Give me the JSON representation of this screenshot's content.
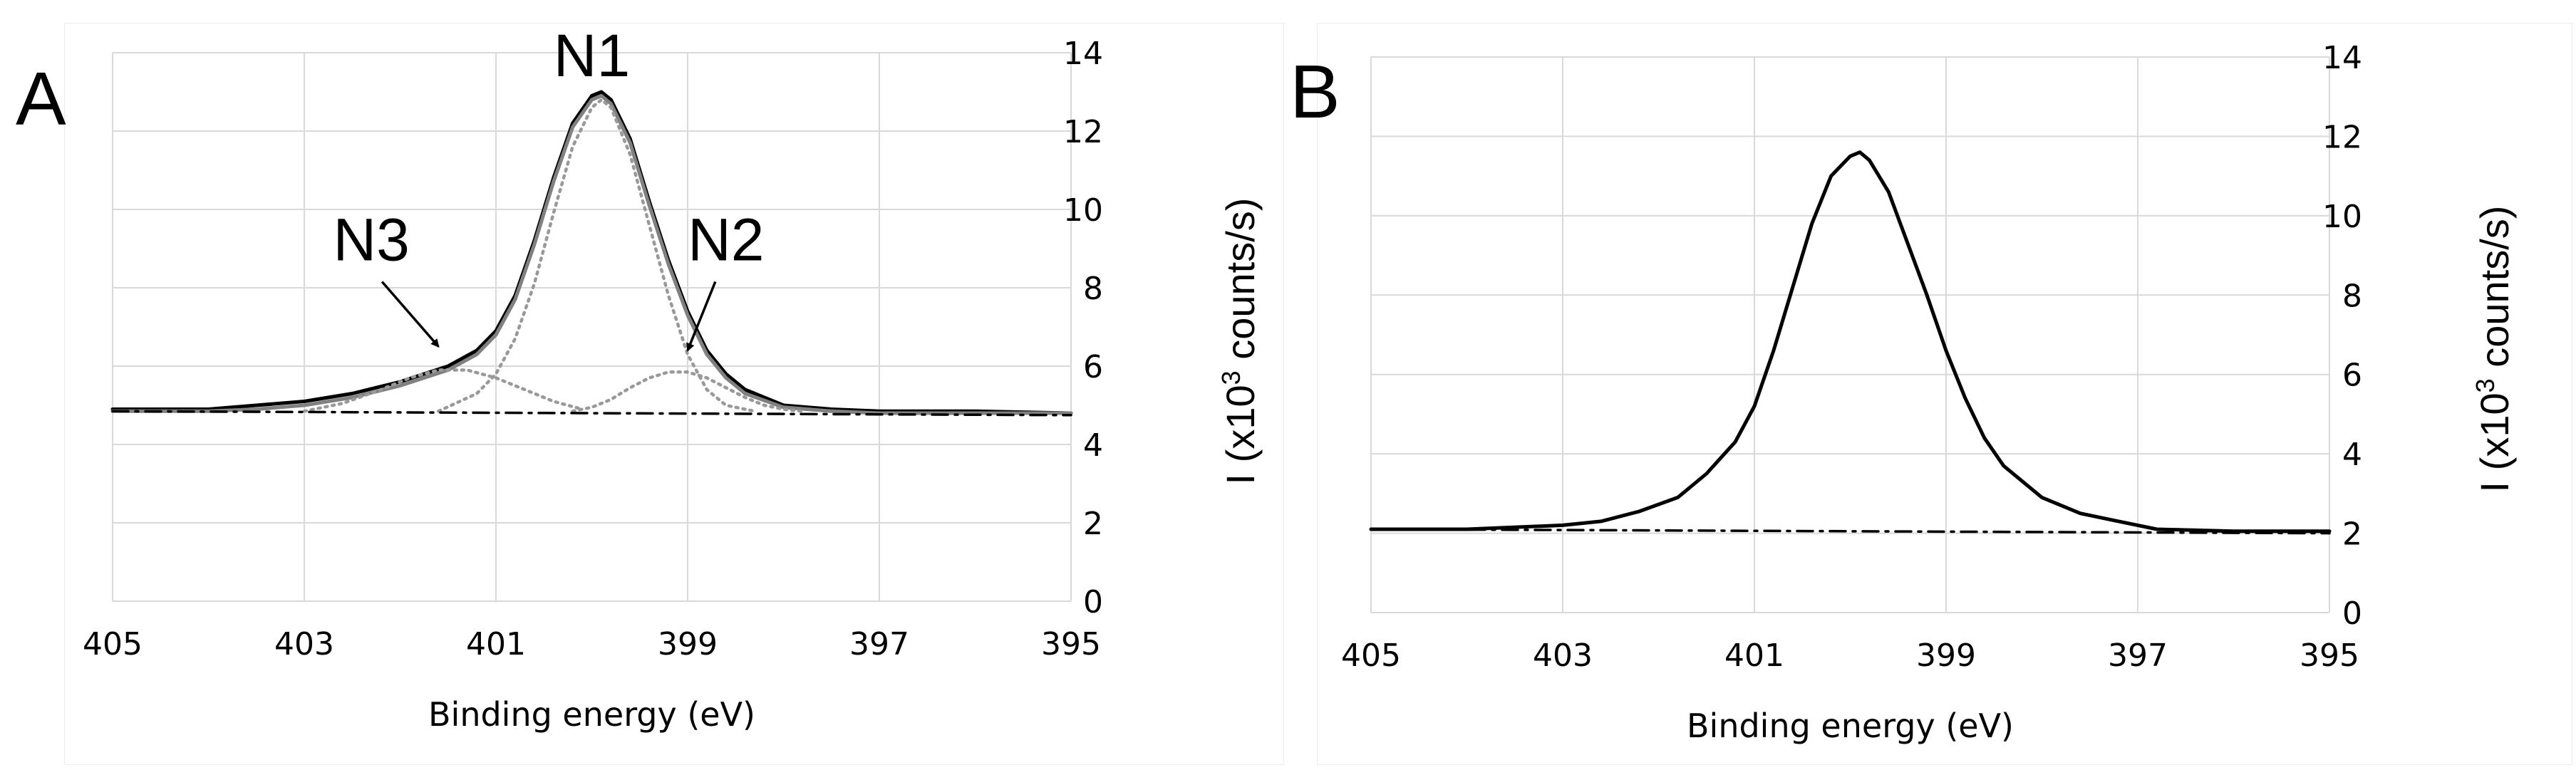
{
  "chart_data": [
    {
      "type": "line",
      "panel_label": "A",
      "xlabel": "Binding energy (eV)",
      "ylabel": "I (x10",
      "ylabel_sup": "3",
      "ylabel_tail": " counts/s)",
      "xlim": [
        405,
        395
      ],
      "ylim": [
        0,
        14
      ],
      "xticks": [
        "405",
        "403",
        "401",
        "399",
        "397",
        "395"
      ],
      "yticks": [
        "0",
        "2",
        "4",
        "6",
        "8",
        "10",
        "12",
        "14"
      ],
      "grid": true,
      "annotations": [
        {
          "text": "N1",
          "x": 400.0,
          "y": 13.4
        },
        {
          "text": "N2",
          "x": 398.6,
          "y": 8.7,
          "arrow_to": [
            399.0,
            6.4
          ]
        },
        {
          "text": "N3",
          "x": 402.3,
          "y": 8.7,
          "arrow_to": [
            401.6,
            6.5
          ]
        }
      ],
      "series": [
        {
          "role": "measured",
          "color": "#000000",
          "style": "solid",
          "x": [
            405,
            404,
            403.5,
            403,
            402.5,
            402,
            401.5,
            401.2,
            401,
            400.8,
            400.6,
            400.4,
            400.2,
            400.0,
            399.9,
            399.8,
            399.6,
            399.4,
            399.2,
            399.0,
            398.8,
            398.6,
            398.4,
            398.0,
            397.5,
            397,
            396,
            395
          ],
          "y": [
            4.9,
            4.9,
            5.0,
            5.1,
            5.3,
            5.6,
            6.0,
            6.4,
            6.9,
            7.8,
            9.2,
            10.8,
            12.2,
            12.9,
            13.0,
            12.8,
            11.8,
            10.2,
            8.7,
            7.4,
            6.4,
            5.8,
            5.4,
            5.0,
            4.9,
            4.85,
            4.85,
            4.8
          ]
        },
        {
          "role": "fit-envelope",
          "color": "#808080",
          "style": "solid",
          "x": [
            405,
            404,
            403.5,
            403,
            402.5,
            402,
            401.5,
            401.2,
            401,
            400.8,
            400.6,
            400.4,
            400.2,
            400.0,
            399.9,
            399.8,
            399.6,
            399.4,
            399.2,
            399.0,
            398.8,
            398.6,
            398.4,
            398.0,
            397.5,
            397,
            396,
            395
          ],
          "y": [
            4.85,
            4.85,
            4.9,
            5.0,
            5.2,
            5.5,
            5.9,
            6.3,
            6.8,
            7.7,
            9.1,
            10.7,
            12.1,
            12.8,
            12.9,
            12.7,
            11.7,
            10.1,
            8.6,
            7.3,
            6.3,
            5.7,
            5.3,
            4.95,
            4.85,
            4.8,
            4.8,
            4.8
          ]
        },
        {
          "role": "N1-component",
          "color": "#999999",
          "style": "dotted",
          "x": [
            401.6,
            401.2,
            401.0,
            400.8,
            400.6,
            400.4,
            400.2,
            400.0,
            399.9,
            399.8,
            399.6,
            399.4,
            399.2,
            399.0,
            398.8,
            398.6,
            398.3
          ],
          "y": [
            4.85,
            5.3,
            5.8,
            6.7,
            8.1,
            9.9,
            11.6,
            12.6,
            12.8,
            12.6,
            11.4,
            9.6,
            7.8,
            6.3,
            5.4,
            5.0,
            4.85
          ]
        },
        {
          "role": "N2-component",
          "color": "#999999",
          "style": "dotted",
          "x": [
            400.2,
            400.0,
            399.8,
            399.6,
            399.4,
            399.2,
            399.0,
            398.8,
            398.6,
            398.4,
            398.2,
            398.0,
            397.8
          ],
          "y": [
            4.85,
            4.95,
            5.15,
            5.45,
            5.7,
            5.85,
            5.85,
            5.7,
            5.45,
            5.2,
            5.0,
            4.9,
            4.85
          ]
        },
        {
          "role": "N3-component",
          "color": "#999999",
          "style": "dotted",
          "x": [
            403.0,
            402.6,
            402.2,
            401.9,
            401.6,
            401.3,
            401.0,
            400.7,
            400.4,
            400.1
          ],
          "y": [
            4.85,
            5.05,
            5.4,
            5.7,
            5.9,
            5.9,
            5.7,
            5.4,
            5.1,
            4.9
          ]
        },
        {
          "role": "baseline",
          "color": "#000000",
          "style": "dashdot",
          "x": [
            405,
            395
          ],
          "y": [
            4.85,
            4.75
          ]
        }
      ]
    },
    {
      "type": "line",
      "panel_label": "B",
      "xlabel": "Binding energy (eV)",
      "ylabel": "I (x10",
      "ylabel_sup": "3",
      "ylabel_tail": " counts/s)",
      "xlim": [
        405,
        395
      ],
      "ylim": [
        0,
        14
      ],
      "xticks": [
        "405",
        "403",
        "401",
        "399",
        "397",
        "395"
      ],
      "yticks": [
        "0",
        "2",
        "4",
        "6",
        "8",
        "10",
        "12",
        "14"
      ],
      "grid": true,
      "series": [
        {
          "role": "measured",
          "color": "#000000",
          "style": "solid",
          "x": [
            405,
            404,
            403,
            402.6,
            402.2,
            401.8,
            401.5,
            401.2,
            401.0,
            400.8,
            400.6,
            400.4,
            400.2,
            400.0,
            399.9,
            399.8,
            399.6,
            399.4,
            399.2,
            399.0,
            398.8,
            398.6,
            398.4,
            398.0,
            397.6,
            397.2,
            396.8,
            396.0,
            395
          ],
          "y": [
            2.1,
            2.1,
            2.2,
            2.3,
            2.55,
            2.9,
            3.5,
            4.3,
            5.2,
            6.6,
            8.2,
            9.8,
            11.0,
            11.5,
            11.6,
            11.4,
            10.6,
            9.3,
            8.0,
            6.6,
            5.4,
            4.4,
            3.7,
            2.9,
            2.5,
            2.3,
            2.1,
            2.05,
            2.05
          ]
        },
        {
          "role": "baseline",
          "color": "#000000",
          "style": "dashdot",
          "x": [
            405,
            395
          ],
          "y": [
            2.1,
            2.0
          ]
        }
      ]
    }
  ]
}
